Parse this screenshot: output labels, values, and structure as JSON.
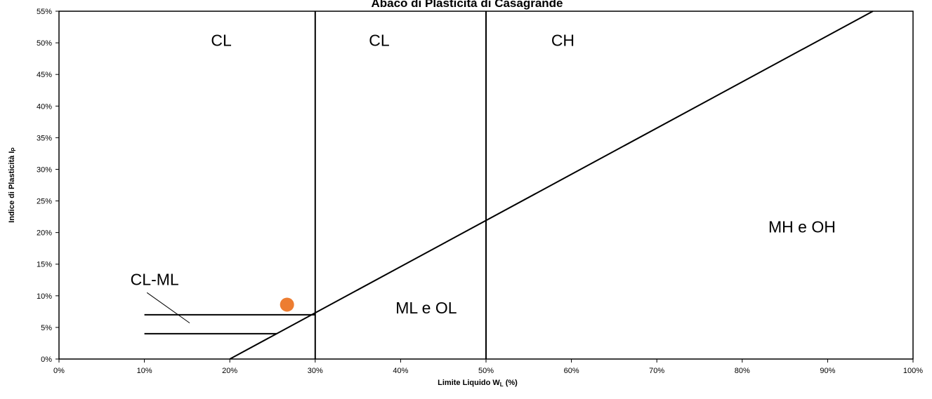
{
  "chart_data": {
    "type": "scatter",
    "title": "Abaco di Plasticità di Casagrande",
    "xlabel": "Limite Liquido W",
    "xlabel_sub": "L",
    "xlabel_suffix": " (%)",
    "ylabel": "Indice di Plasticità I",
    "ylabel_sub": "P",
    "xlim": [
      0,
      100
    ],
    "ylim": [
      0,
      55
    ],
    "x_ticks": [
      "0%",
      "10%",
      "20%",
      "30%",
      "40%",
      "50%",
      "60%",
      "70%",
      "80%",
      "90%",
      "100%"
    ],
    "y_ticks": [
      "0%",
      "5%",
      "10%",
      "15%",
      "20%",
      "25%",
      "30%",
      "35%",
      "40%",
      "45%",
      "50%",
      "55%"
    ],
    "grid": false,
    "lines": [
      {
        "x": [
          20,
          95.3
        ],
        "y": [
          0,
          55
        ]
      },
      {
        "x": [
          30,
          30
        ],
        "y": [
          0,
          55
        ]
      },
      {
        "x": [
          50,
          50
        ],
        "y": [
          0,
          55
        ]
      },
      {
        "x": [
          10,
          30
        ],
        "y": [
          7,
          7
        ]
      },
      {
        "x": [
          10,
          25.5
        ],
        "y": [
          4,
          4
        ]
      }
    ],
    "points": [
      {
        "x": 26.7,
        "y": 8.6,
        "color": "#ED7D31"
      }
    ],
    "region_labels": [
      {
        "text": "CL",
        "x": 19,
        "y": 49.5
      },
      {
        "text": "CL",
        "x": 37.5,
        "y": 49.5
      },
      {
        "text": "CH",
        "x": 59,
        "y": 49.5
      },
      {
        "text": "MH e OH",
        "x": 87,
        "y": 20
      },
      {
        "text": "ML e OL",
        "x": 43,
        "y": 7.2
      },
      {
        "text": "CL-ML",
        "x": 11.2,
        "y": 11.7
      }
    ],
    "leader": {
      "x": [
        10.3,
        15.3
      ],
      "y": [
        10.5,
        5.7
      ]
    }
  }
}
